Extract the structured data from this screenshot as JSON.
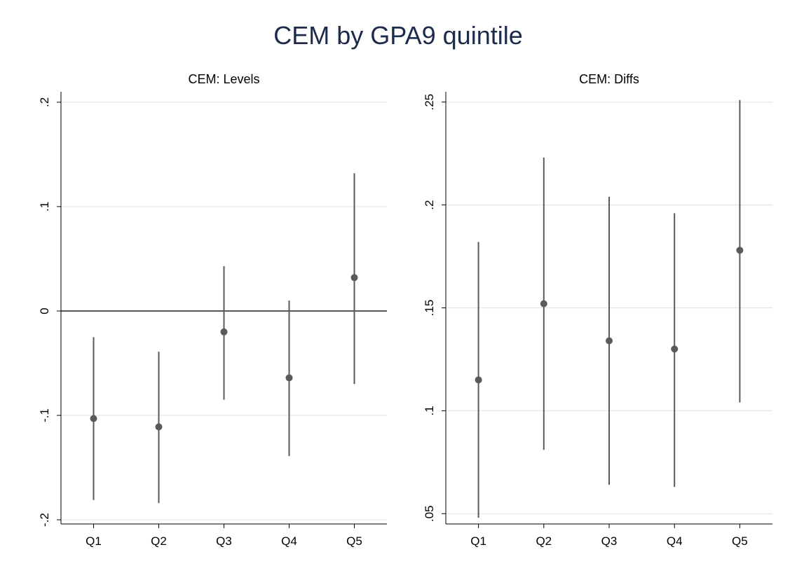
{
  "title": "CEM by GPA9 quintile",
  "colors": {
    "marker": "#5a5a5a",
    "ci_line": "#5a5a5a",
    "grid": "#e6e6e6",
    "axis": "#000000",
    "zero_line": "#333333",
    "title": "#1c2b4a"
  },
  "chart_data": [
    {
      "type": "scatter",
      "subtype": "coefficient-plot-with-confidence-intervals",
      "title": "CEM: Levels",
      "categories": [
        "Q1",
        "Q2",
        "Q3",
        "Q4",
        "Q5"
      ],
      "estimates": [
        -0.103,
        -0.111,
        -0.02,
        -0.064,
        0.032
      ],
      "ci_lower": [
        -0.181,
        -0.184,
        -0.085,
        -0.139,
        -0.07
      ],
      "ci_upper": [
        -0.025,
        -0.039,
        0.043,
        0.01,
        0.132
      ],
      "yticks": [
        -0.2,
        -0.1,
        0,
        0.1,
        0.2
      ],
      "ytick_labels": [
        "-.2",
        "-.1",
        "0",
        ".1",
        ".2"
      ],
      "ylim": [
        -0.204,
        0.21
      ],
      "reference_line": 0,
      "grid": true,
      "legend": "none"
    },
    {
      "type": "scatter",
      "subtype": "coefficient-plot-with-confidence-intervals",
      "title": "CEM: Diffs",
      "categories": [
        "Q1",
        "Q2",
        "Q3",
        "Q4",
        "Q5"
      ],
      "estimates": [
        0.115,
        0.152,
        0.134,
        0.13,
        0.178
      ],
      "ci_lower": [
        0.048,
        0.081,
        0.064,
        0.063,
        0.104
      ],
      "ci_upper": [
        0.182,
        0.223,
        0.204,
        0.196,
        0.251
      ],
      "yticks": [
        0.05,
        0.1,
        0.15,
        0.2,
        0.25
      ],
      "ytick_labels": [
        ".05",
        ".1",
        ".15",
        ".2",
        ".25"
      ],
      "ylim": [
        0.045,
        0.255
      ],
      "reference_line": null,
      "grid": true,
      "legend": "none"
    }
  ]
}
